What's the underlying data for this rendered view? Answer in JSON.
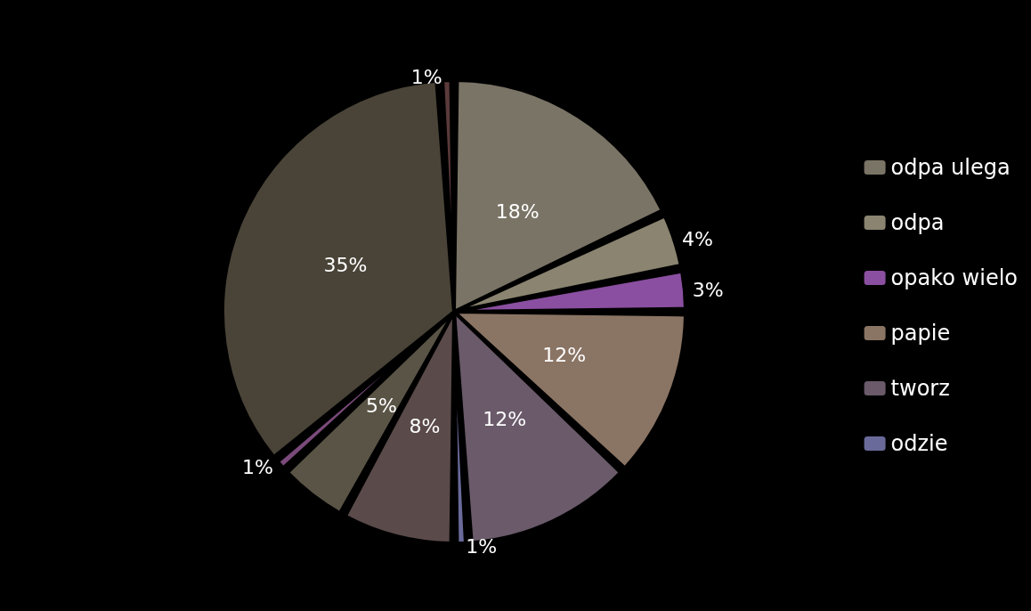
{
  "chart_data": {
    "type": "pie",
    "categories": [
      "odpa ulega",
      "odpa",
      "opako wielo",
      "papie",
      "tworz",
      "odzie",
      null,
      null,
      null,
      null,
      null
    ],
    "values": [
      18,
      4,
      3,
      12,
      12,
      1,
      8,
      5,
      1,
      35,
      1
    ],
    "value_labels": [
      "18%",
      "4%",
      "3%",
      "12%",
      "12%",
      "1%",
      "8%",
      "5%",
      "1%",
      "35%",
      "1%"
    ],
    "colors": [
      "#7a7466",
      "#8a8470",
      "#8a4fa0",
      "#8a7464",
      "#6a5a6a",
      "#6a6a9a",
      "#5a4a4a",
      "#5a5446",
      "#7a4a7a",
      "#4a4438",
      "#5a3a3a"
    ],
    "legend": "right"
  }
}
